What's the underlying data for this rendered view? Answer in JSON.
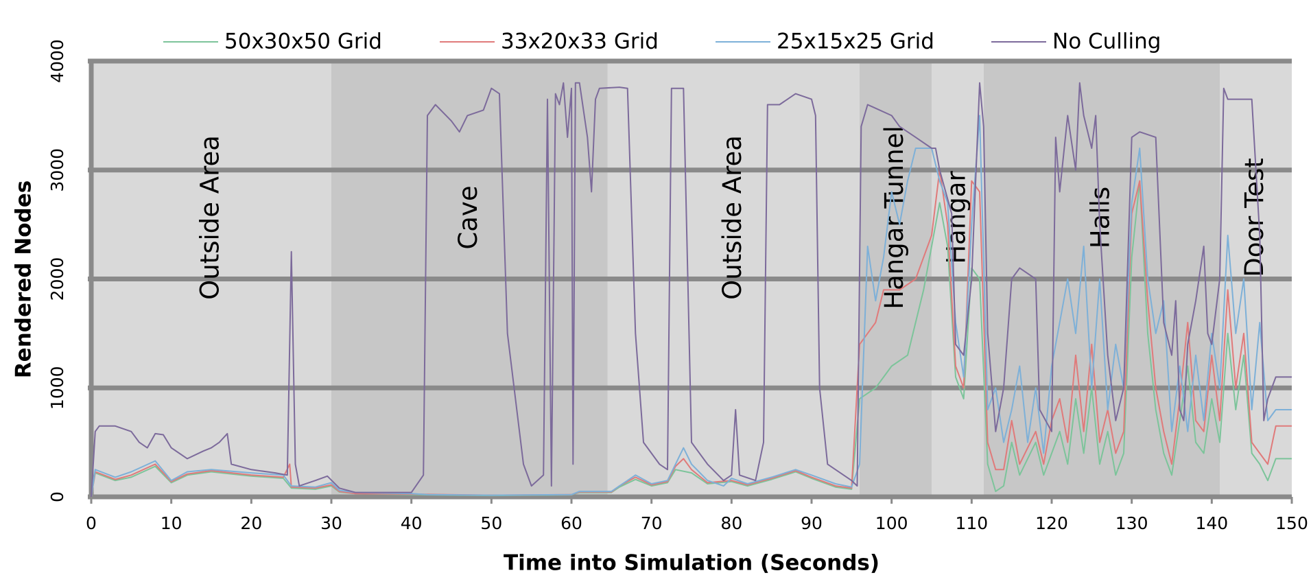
{
  "chart_data": {
    "type": "line",
    "x_label": "Time into Simulation (Seconds)",
    "y_label": "Rendered Nodes",
    "xlim": [
      0,
      150
    ],
    "xticks": [
      0,
      10,
      20,
      30,
      40,
      50,
      60,
      70,
      80,
      90,
      100,
      110,
      120,
      130,
      140,
      150
    ],
    "ylim": [
      0,
      4000
    ],
    "yticks": [
      0,
      1000,
      2000,
      3000,
      4000
    ],
    "grid": true,
    "legend": "top",
    "regions": [
      {
        "label": "Outside Area",
        "start": 0,
        "end": 30,
        "color": "#d9d9d9"
      },
      {
        "label": "Cave",
        "start": 30,
        "end": 64.5,
        "color": "#c7c7c7"
      },
      {
        "label": "Outside Area",
        "start": 64.5,
        "end": 96,
        "color": "#d9d9d9"
      },
      {
        "label": "Hangar Tunnel",
        "start": 96,
        "end": 105,
        "color": "#c7c7c7"
      },
      {
        "label": "Hangar",
        "start": 105,
        "end": 111.5,
        "color": "#d9d9d9"
      },
      {
        "label": "Halls",
        "start": 111.5,
        "end": 141,
        "color": "#c7c7c7"
      },
      {
        "label": "Door Test",
        "start": 141,
        "end": 150,
        "color": "#d9d9d9"
      }
    ],
    "series": [
      {
        "name": "50x30x50 Grid",
        "color": "#7cc49a",
        "x": [
          0,
          0.5,
          3,
          5,
          8,
          10,
          12,
          15,
          20,
          24,
          25,
          28,
          30,
          31,
          33,
          40,
          50,
          60,
          61,
          65,
          66,
          68,
          70,
          72,
          73,
          75,
          77,
          80,
          82,
          85,
          88,
          90,
          93,
          95,
          96,
          98,
          100,
          102,
          104,
          106,
          107,
          108,
          109,
          110,
          111,
          112,
          113,
          114,
          115,
          116,
          118,
          119,
          120,
          121,
          122,
          123,
          124,
          125,
          126,
          127,
          128,
          129,
          130,
          131,
          132,
          133,
          134,
          135,
          136,
          137,
          138,
          139,
          140,
          141,
          142,
          143,
          144,
          145,
          146,
          147,
          148,
          150
        ],
        "values": [
          0,
          220,
          150,
          180,
          280,
          130,
          200,
          230,
          190,
          170,
          80,
          70,
          100,
          45,
          30,
          20,
          12,
          18,
          40,
          40,
          90,
          160,
          100,
          130,
          250,
          220,
          120,
          140,
          100,
          160,
          230,
          170,
          90,
          70,
          900,
          1000,
          1200,
          1300,
          1900,
          2700,
          2300,
          1100,
          900,
          2100,
          2000,
          300,
          50,
          100,
          500,
          200,
          500,
          200,
          400,
          600,
          300,
          900,
          400,
          1000,
          300,
          600,
          200,
          400,
          2200,
          2900,
          1500,
          800,
          400,
          200,
          700,
          1200,
          500,
          400,
          900,
          500,
          1500,
          800,
          1300,
          400,
          300,
          150,
          350,
          350
        ]
      },
      {
        "name": "33x20x33 Grid",
        "color": "#e07a7a",
        "x": [
          0,
          0.5,
          3,
          5,
          8,
          10,
          12,
          15,
          20,
          24,
          24.8,
          25,
          28,
          30,
          31,
          33,
          40,
          50,
          60,
          61,
          65,
          66,
          68,
          70,
          72,
          73,
          74,
          75,
          77,
          80,
          82,
          85,
          88,
          90,
          93,
          95,
          96,
          98,
          99,
          101,
          103,
          105,
          106,
          107,
          108,
          109,
          110,
          111,
          112,
          113,
          114,
          115,
          116,
          118,
          119,
          120,
          121,
          122,
          123,
          124,
          125,
          126,
          127,
          128,
          129,
          130,
          131,
          132,
          133,
          134,
          135,
          136,
          137,
          138,
          139,
          140,
          141,
          142,
          143,
          144,
          145,
          146,
          147,
          148,
          150
        ],
        "values": [
          0,
          230,
          160,
          200,
          300,
          140,
          210,
          240,
          200,
          180,
          300,
          90,
          80,
          110,
          50,
          30,
          25,
          15,
          20,
          45,
          45,
          100,
          180,
          110,
          140,
          280,
          350,
          250,
          130,
          150,
          110,
          170,
          240,
          180,
          100,
          80,
          1400,
          1600,
          1900,
          1900,
          2000,
          2400,
          3000,
          2500,
          1200,
          1000,
          2900,
          2800,
          500,
          250,
          250,
          700,
          300,
          600,
          300,
          700,
          900,
          500,
          1300,
          600,
          1400,
          500,
          800,
          400,
          600,
          2600,
          2900,
          1800,
          1000,
          600,
          300,
          900,
          1600,
          700,
          600,
          1300,
          700,
          1900,
          1000,
          1500,
          500,
          400,
          300,
          650,
          650
        ]
      },
      {
        "name": "25x15x25 Grid",
        "color": "#7db0d8",
        "x": [
          0,
          0.5,
          3,
          5,
          8,
          10,
          12,
          15,
          20,
          24,
          25,
          28,
          30,
          31,
          33,
          40,
          42,
          50,
          60,
          61,
          65,
          66,
          68,
          70,
          72,
          73,
          74,
          75,
          77,
          79,
          80,
          82,
          85,
          88,
          90,
          93,
          95,
          96,
          97,
          98,
          99,
          100,
          101,
          102,
          103,
          105,
          106,
          107,
          108,
          109,
          110,
          111,
          112,
          113,
          114,
          115,
          116,
          117,
          118,
          119,
          120,
          121,
          122,
          123,
          124,
          125,
          126,
          127,
          128,
          129,
          130,
          131,
          132,
          133,
          134,
          135,
          136,
          137,
          138,
          139,
          140,
          141,
          142,
          143,
          144,
          145,
          146,
          147,
          148,
          150
        ],
        "values": [
          0,
          250,
          180,
          230,
          330,
          150,
          230,
          250,
          220,
          200,
          100,
          90,
          130,
          60,
          40,
          30,
          20,
          15,
          20,
          50,
          50,
          100,
          200,
          120,
          150,
          300,
          450,
          300,
          150,
          100,
          170,
          120,
          180,
          250,
          200,
          120,
          90,
          300,
          2300,
          1800,
          2200,
          2800,
          2500,
          2900,
          3200,
          3200,
          2900,
          2700,
          1600,
          1100,
          2500,
          3500,
          800,
          1000,
          500,
          800,
          1200,
          500,
          1000,
          400,
          1200,
          1600,
          2000,
          1500,
          2300,
          1000,
          2000,
          800,
          1400,
          1000,
          2700,
          3200,
          2000,
          1500,
          1800,
          600,
          1200,
          600,
          1300,
          700,
          1500,
          1000,
          2400,
          1500,
          2000,
          800,
          1600,
          700,
          800,
          800
        ]
      },
      {
        "name": "No Culling",
        "color": "#7c6a9b",
        "x": [
          0,
          0.5,
          1,
          3,
          5,
          6,
          7,
          8,
          9,
          10,
          12,
          14,
          15,
          16,
          17,
          17.5,
          20,
          23,
          24.5,
          25,
          25.5,
          26,
          28,
          29.5,
          31,
          33,
          40,
          41.5,
          42,
          43,
          45,
          46,
          47,
          49,
          50,
          51,
          52,
          54,
          55,
          56.5,
          57,
          57.5,
          58,
          58.5,
          59,
          59.5,
          60,
          60.2,
          60.5,
          61,
          62,
          62.5,
          63,
          63.5,
          66,
          67,
          68,
          69,
          71,
          72,
          72.5,
          74,
          75,
          77,
          79,
          80,
          80.5,
          81,
          83,
          84,
          84.5,
          86,
          88,
          90,
          90.5,
          91,
          92,
          95,
          95.7,
          96.2,
          97,
          100,
          101,
          103,
          105,
          105.5,
          106,
          107.5,
          108,
          109,
          110,
          111,
          111.5,
          112,
          113,
          114,
          115,
          116,
          118,
          118.5,
          120,
          120.5,
          121,
          122,
          123,
          123.5,
          124,
          125,
          125.5,
          126,
          127,
          128,
          129,
          130,
          131,
          133,
          134,
          135,
          135.5,
          136,
          136.5,
          137,
          138,
          139,
          139.5,
          140,
          141,
          141.5,
          142,
          145,
          146,
          146.5,
          147,
          148,
          150
        ],
        "values": [
          0,
          600,
          650,
          650,
          600,
          500,
          450,
          580,
          570,
          450,
          350,
          420,
          450,
          500,
          580,
          300,
          250,
          220,
          200,
          2250,
          300,
          100,
          150,
          190,
          80,
          40,
          40,
          200,
          3500,
          3600,
          3450,
          3350,
          3500,
          3550,
          3750,
          3700,
          1500,
          300,
          100,
          200,
          3650,
          100,
          3700,
          3600,
          3800,
          3300,
          3750,
          300,
          3800,
          3800,
          3300,
          2800,
          3650,
          3750,
          3760,
          3750,
          1500,
          500,
          300,
          250,
          3750,
          3750,
          500,
          300,
          150,
          200,
          800,
          200,
          150,
          500,
          3600,
          3600,
          3700,
          3650,
          3500,
          1000,
          300,
          150,
          100,
          3400,
          3600,
          3500,
          3400,
          3300,
          3200,
          3200,
          3000,
          2600,
          1400,
          1300,
          2000,
          3800,
          3400,
          1500,
          600,
          1000,
          2000,
          2100,
          2000,
          800,
          600,
          3300,
          2800,
          3500,
          3000,
          3800,
          3500,
          3200,
          3500,
          2500,
          1300,
          700,
          1000,
          3300,
          3350,
          3300,
          1600,
          1300,
          1800,
          800,
          700,
          1400,
          1800,
          2300,
          1500,
          1400,
          2000,
          3750,
          3650,
          3650,
          2400,
          700,
          900,
          1100,
          1100
        ]
      }
    ]
  }
}
